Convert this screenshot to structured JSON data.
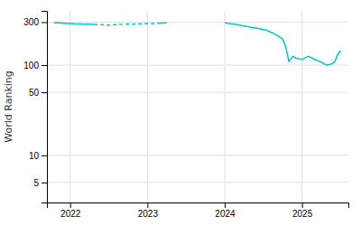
{
  "chart_data": {
    "type": "line",
    "ylabel": "World Ranking",
    "color": "#00c8c8",
    "log": "y",
    "grid": true,
    "series": [
      {
        "line_style": "solid",
        "x": [
          2021.79,
          2021.85,
          2021.92,
          2022.0,
          2022.06,
          2022.13,
          2022.19,
          2022.25,
          2022.31
        ],
        "values": [
          295,
          294,
          292,
          290,
          288,
          287,
          285,
          284,
          283
        ]
      },
      {
        "line_style": "dashed",
        "x": [
          2022.31,
          2022.38,
          2022.44,
          2022.5,
          2022.56,
          2022.63,
          2022.69,
          2022.75,
          2022.81,
          2022.88,
          2022.94,
          2023.0,
          2023.06,
          2023.13
        ],
        "values": [
          283,
          281,
          280,
          278,
          280,
          282,
          284,
          286,
          285,
          287,
          289,
          290,
          289,
          291
        ]
      },
      {
        "line_style": "solid",
        "x": [
          2023.13,
          2023.19,
          2023.25
        ],
        "values": [
          291,
          293,
          295
        ]
      },
      {
        "line_style": "solid",
        "x": [
          2024.0,
          2024.04,
          2024.08,
          2024.13,
          2024.17,
          2024.21,
          2024.25,
          2024.29,
          2024.33,
          2024.38,
          2024.42,
          2024.46,
          2024.5,
          2024.54,
          2024.58,
          2024.63,
          2024.67,
          2024.71,
          2024.75,
          2024.79,
          2024.83,
          2024.88,
          2024.92,
          2024.96,
          2025.0,
          2025.04,
          2025.08,
          2025.13,
          2025.17,
          2025.21,
          2025.25,
          2025.29,
          2025.33,
          2025.38,
          2025.42,
          2025.46,
          2025.5
        ],
        "values": [
          295,
          292,
          288,
          284,
          280,
          276,
          272,
          268,
          264,
          260,
          256,
          252,
          248,
          244,
          235,
          225,
          215,
          205,
          195,
          160,
          110,
          125,
          120,
          118,
          115,
          120,
          125,
          120,
          115,
          112,
          108,
          103,
          100,
          103,
          108,
          130,
          145
        ]
      }
    ],
    "xlim": [
      2021.7,
      2025.6
    ],
    "xticks": [
      2022,
      2023,
      2024,
      2025
    ],
    "ylim": [
      3,
      400
    ],
    "yticks": [
      5,
      10,
      50,
      100,
      300
    ]
  }
}
